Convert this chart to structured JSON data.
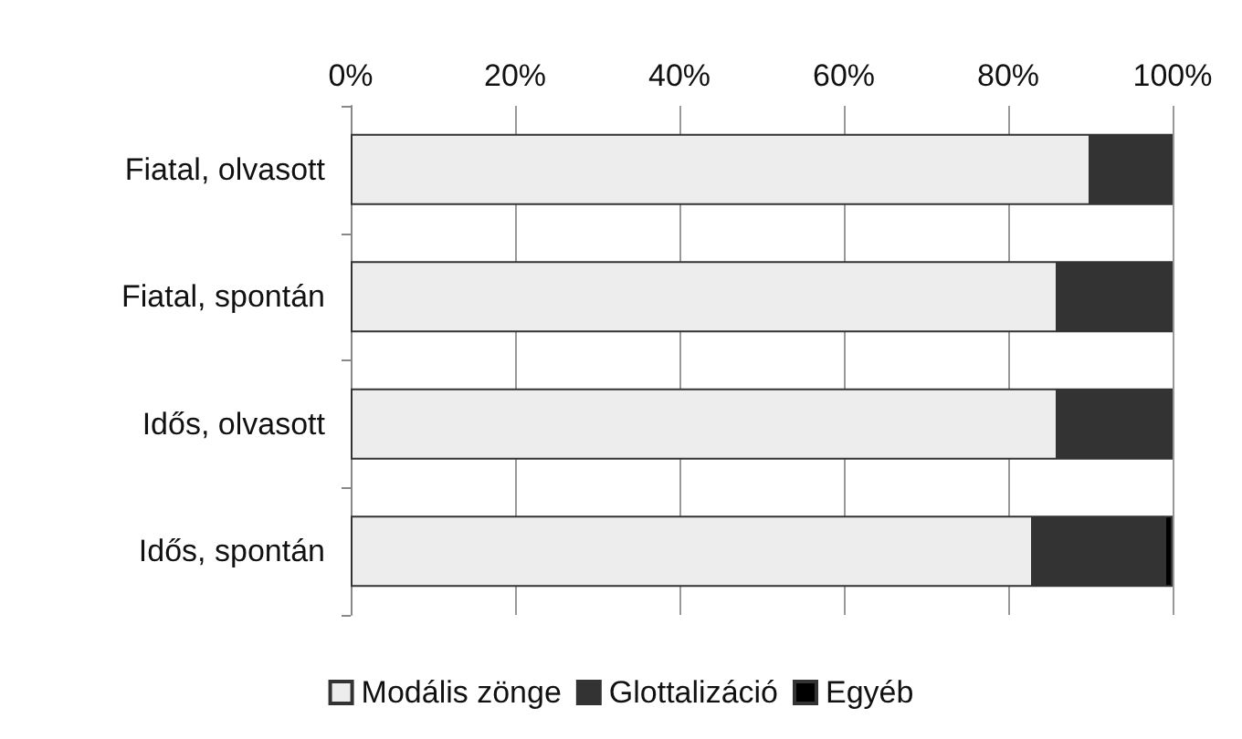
{
  "chart_data": {
    "type": "bar",
    "orientation": "horizontal",
    "stacked": true,
    "categories": [
      "Fiatal, olvasott",
      "Fiatal, spontán",
      "Idős, olvasott",
      "Idős, spontán"
    ],
    "series": [
      {
        "name": "Modális zönge",
        "color": "#ededed",
        "values": [
          90,
          86,
          86,
          83
        ]
      },
      {
        "name": "Glottalizáció",
        "color": "#333333",
        "values": [
          10,
          14,
          14,
          16
        ]
      },
      {
        "name": "Egyéb",
        "color": "#000000",
        "values": [
          0,
          0,
          0,
          1
        ]
      }
    ],
    "xlim": [
      0,
      100
    ],
    "xticks": [
      {
        "value": 0,
        "label": "0%"
      },
      {
        "value": 20,
        "label": "20%"
      },
      {
        "value": 40,
        "label": "40%"
      },
      {
        "value": 60,
        "label": "60%"
      },
      {
        "value": 80,
        "label": "80%"
      },
      {
        "value": 100,
        "label": "100%"
      }
    ],
    "grid": "x",
    "legend": "bottom"
  }
}
